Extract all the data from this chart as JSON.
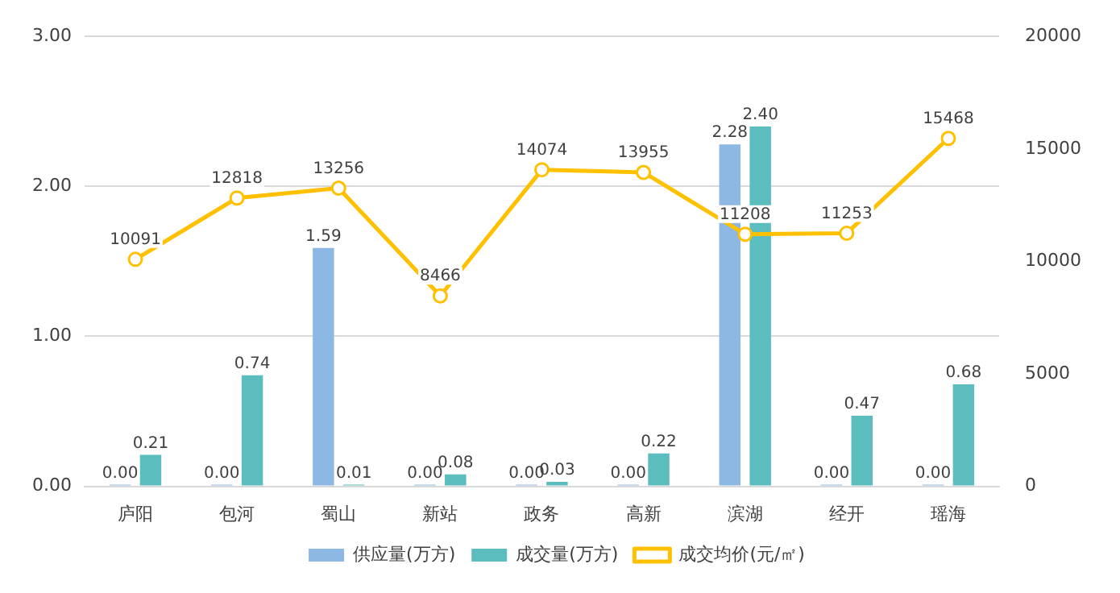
{
  "chart_data": {
    "type": "bar",
    "categories": [
      "庐阳",
      "包河",
      "蜀山",
      "新站",
      "政务",
      "高新",
      "滨湖",
      "经开",
      "瑶海"
    ],
    "series": [
      {
        "name": "供应量(万方)",
        "color": "#8db8e3",
        "values": [
          0,
          0,
          1.59,
          0,
          0,
          0,
          2.28,
          0,
          0
        ],
        "value_labels": [
          "0.00",
          "0.00",
          "1.59",
          "0.00",
          "0.00",
          "0.00",
          "2.28",
          "0.00",
          "0.00"
        ]
      },
      {
        "name": "成交量(万方)",
        "color": "#5bbdbd",
        "values": [
          0.21,
          0.74,
          0.01,
          0.08,
          0.03,
          0.22,
          2.4,
          0.47,
          0.68
        ],
        "value_labels": [
          "0.21",
          "0.74",
          "0.01",
          "0.08",
          "0.03",
          "0.22",
          "2.40",
          "0.47",
          "0.68"
        ]
      },
      {
        "name": "成交均价(元/㎡)",
        "type": "line",
        "axis": "y2",
        "color": "#ffc000",
        "marker": "circle",
        "values": [
          10091,
          12818,
          13256,
          8466,
          14074,
          13955,
          11208,
          11253,
          15468
        ],
        "value_labels": [
          "10091",
          "12818",
          "13256",
          "8466",
          "14074",
          "13955",
          "11208",
          "11253",
          "15468"
        ]
      }
    ],
    "ylim": [
      0,
      3
    ],
    "yticks": [
      {
        "value": 0,
        "label": "0.00"
      },
      {
        "value": 1,
        "label": "1.00"
      },
      {
        "value": 2,
        "label": "2.00"
      },
      {
        "value": 3,
        "label": "3.00"
      }
    ],
    "y2lim": [
      0,
      20000
    ],
    "y2ticks": [
      0,
      5000,
      10000,
      15000,
      20000
    ],
    "grid": "y",
    "legend": "bottom"
  }
}
